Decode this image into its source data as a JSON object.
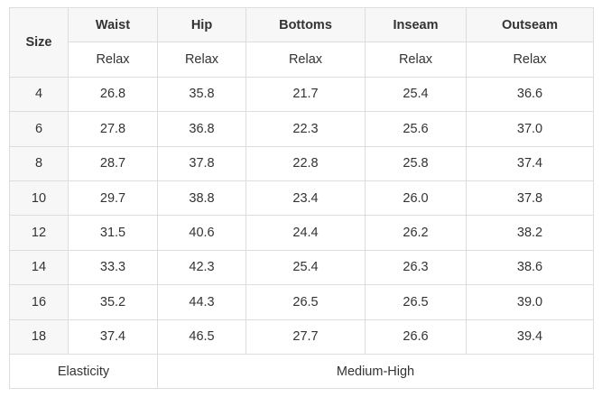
{
  "header": {
    "size": "Size",
    "columns": [
      "Waist",
      "Hip",
      "Bottoms",
      "Inseam",
      "Outseam"
    ]
  },
  "fit_row": [
    "Relax",
    "Relax",
    "Relax",
    "Relax",
    "Relax"
  ],
  "rows": [
    {
      "size": "4",
      "values": [
        "26.8",
        "35.8",
        "21.7",
        "25.4",
        "36.6"
      ]
    },
    {
      "size": "6",
      "values": [
        "27.8",
        "36.8",
        "22.3",
        "25.6",
        "37.0"
      ]
    },
    {
      "size": "8",
      "values": [
        "28.7",
        "37.8",
        "22.8",
        "25.8",
        "37.4"
      ]
    },
    {
      "size": "10",
      "values": [
        "29.7",
        "38.8",
        "23.4",
        "26.0",
        "37.8"
      ]
    },
    {
      "size": "12",
      "values": [
        "31.5",
        "40.6",
        "24.4",
        "26.2",
        "38.2"
      ]
    },
    {
      "size": "14",
      "values": [
        "33.3",
        "42.3",
        "25.4",
        "26.3",
        "38.6"
      ]
    },
    {
      "size": "16",
      "values": [
        "35.2",
        "44.3",
        "26.5",
        "26.5",
        "39.0"
      ]
    },
    {
      "size": "18",
      "values": [
        "37.4",
        "46.5",
        "27.7",
        "26.6",
        "39.4"
      ]
    }
  ],
  "footer": {
    "label": "Elasticity",
    "value": "Medium-High"
  }
}
